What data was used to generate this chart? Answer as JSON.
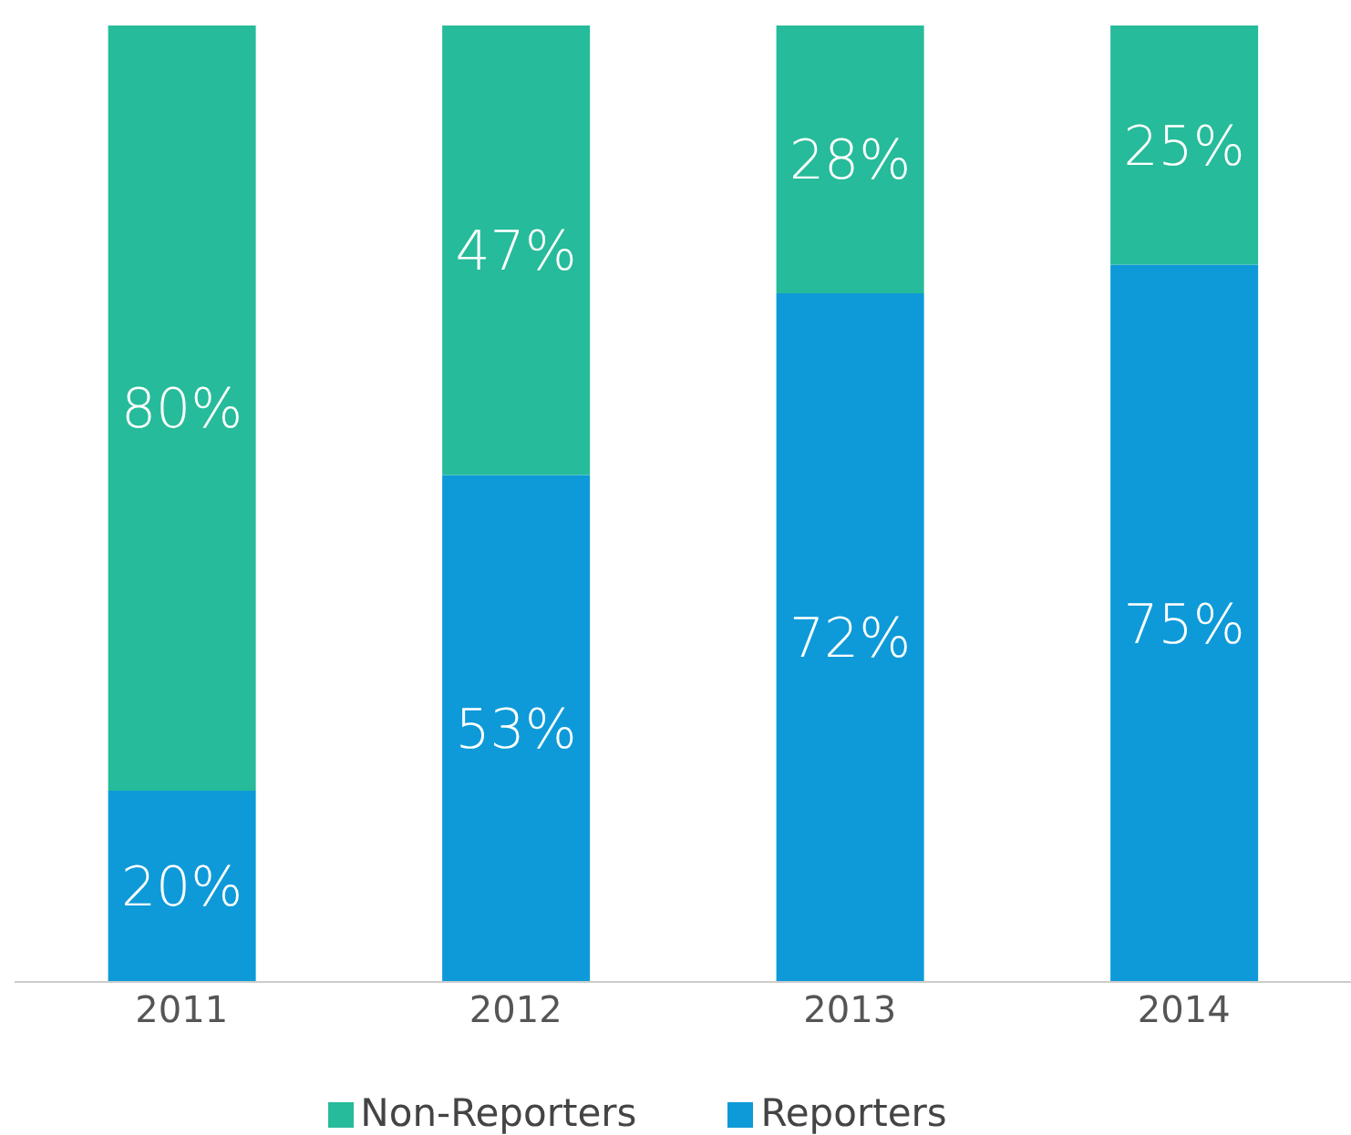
{
  "chart_data": {
    "type": "bar",
    "stacked": true,
    "categories": [
      "2011",
      "2012",
      "2013",
      "2014"
    ],
    "series": [
      {
        "name": "Reporters",
        "color": "#0e9ad8",
        "values": [
          20,
          53,
          72,
          75
        ],
        "value_labels": [
          "20%",
          "53%",
          "72%",
          "75%"
        ]
      },
      {
        "name": "Non-Reporters",
        "color": "#26bb9a",
        "values": [
          80,
          47,
          28,
          25
        ],
        "value_labels": [
          "80%",
          "47%",
          "28%",
          "25%"
        ]
      }
    ],
    "ylim": [
      0,
      100
    ],
    "tick_labels": "x",
    "legend": "bottom",
    "grid": false
  }
}
